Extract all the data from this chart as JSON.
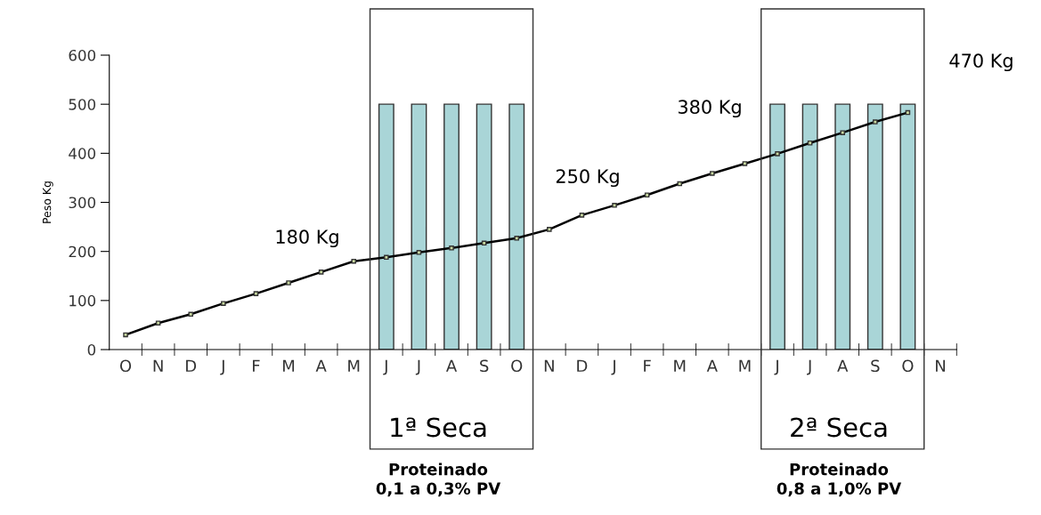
{
  "chart_data": {
    "type": "bar",
    "ylabel": "Peso Kg",
    "categories": [
      "O",
      "N",
      "D",
      "J",
      "F",
      "M",
      "A",
      "M",
      "J",
      "J",
      "A",
      "S",
      "O",
      "N",
      "D",
      "J",
      "F",
      "M",
      "A",
      "M",
      "J",
      "J",
      "A",
      "S",
      "O",
      "N"
    ],
    "series": [
      {
        "color": "#a9d5d7",
        "values": [
          null,
          null,
          null,
          null,
          null,
          null,
          null,
          null,
          500,
          500,
          500,
          500,
          500,
          null,
          null,
          null,
          null,
          null,
          null,
          null,
          500,
          500,
          500,
          500,
          500,
          null
        ]
      },
      {
        "type": "line",
        "color": "#000000",
        "marker": "square",
        "line_style": "solid",
        "values": [
          30,
          54,
          72,
          94,
          114,
          136,
          158,
          180,
          188,
          198,
          207,
          217,
          227,
          245,
          274,
          294,
          315,
          338,
          359,
          379,
          399,
          421,
          442,
          464,
          483,
          null
        ]
      }
    ],
    "ylim": [
      0,
      600
    ],
    "yticks": [
      0,
      100,
      200,
      300,
      400,
      500,
      600
    ],
    "grid": false,
    "legend": false,
    "annotations": [
      "1ª Seca",
      "2ª Seca",
      "180 Kg",
      "250 Kg",
      "380 Kg",
      "470 Kg",
      "Proteinado\n0,1 a 0,3% PV",
      "Proteinado\n0,8 a 1,0% PV"
    ]
  }
}
